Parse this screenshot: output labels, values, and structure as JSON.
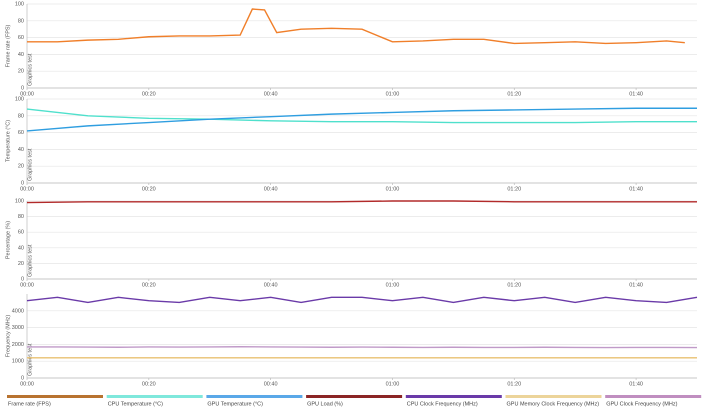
{
  "chart_data": [
    {
      "type": "line",
      "y_label": "Frame rate (FPS)",
      "annotation": "Graphics test",
      "x": [
        0,
        5,
        10,
        15,
        20,
        25,
        30,
        35,
        37,
        39,
        41,
        45,
        50,
        55,
        60,
        65,
        70,
        75,
        80,
        85,
        90,
        95,
        100,
        105,
        108
      ],
      "xlim": [
        0,
        110
      ],
      "xticks": [
        {
          "value": 0,
          "label": "00:00"
        },
        {
          "value": 20,
          "label": "00:20"
        },
        {
          "value": 40,
          "label": "00:40"
        },
        {
          "value": 60,
          "label": "01:00"
        },
        {
          "value": 80,
          "label": "01:20"
        },
        {
          "value": 100,
          "label": "01:40"
        }
      ],
      "ylim": [
        0,
        100
      ],
      "yticks": [
        0,
        20,
        40,
        60,
        80,
        100
      ],
      "grid": true,
      "series": [
        {
          "name": "Frame rate (FPS)",
          "color": "#f07f2a",
          "legend_color": "#b87330",
          "values": [
            55,
            55,
            57,
            58,
            61,
            62,
            62,
            63,
            94,
            93,
            66,
            70,
            71,
            70,
            55,
            56,
            58,
            58,
            53,
            54,
            55,
            53,
            54,
            56,
            54
          ]
        }
      ]
    },
    {
      "type": "line",
      "y_label": "Temperature (°C)",
      "annotation": "Graphics test",
      "x": [
        0,
        10,
        20,
        30,
        40,
        50,
        60,
        70,
        80,
        90,
        100,
        110
      ],
      "xlim": [
        0,
        110
      ],
      "xticks": [
        {
          "value": 0,
          "label": "00:00"
        },
        {
          "value": 20,
          "label": "00:20"
        },
        {
          "value": 40,
          "label": "00:40"
        },
        {
          "value": 60,
          "label": "01:00"
        },
        {
          "value": 80,
          "label": "01:20"
        },
        {
          "value": 100,
          "label": "01:40"
        }
      ],
      "ylim": [
        0,
        100
      ],
      "yticks": [
        0,
        20,
        40,
        60,
        80,
        100
      ],
      "grid": true,
      "series": [
        {
          "name": "CPU Temperature (°C)",
          "color": "#4fe0cc",
          "legend_color": "#7fe8dc",
          "values": [
            88,
            80,
            77,
            76,
            74,
            73,
            73,
            72,
            72,
            72,
            73,
            73
          ]
        },
        {
          "name": "GPU Temperature (°C)",
          "color": "#2f9ee0",
          "legend_color": "#5aa8e8",
          "values": [
            62,
            68,
            72,
            76,
            79,
            82,
            84,
            86,
            87,
            88,
            89,
            89
          ]
        }
      ]
    },
    {
      "type": "line",
      "y_label": "Percentage (%)",
      "annotation": "Graphics test",
      "x": [
        0,
        10,
        20,
        30,
        40,
        50,
        60,
        70,
        80,
        90,
        100,
        110
      ],
      "xlim": [
        0,
        110
      ],
      "xticks": [
        {
          "value": 0,
          "label": "00:00"
        },
        {
          "value": 20,
          "label": "00:20"
        },
        {
          "value": 40,
          "label": "00:40"
        },
        {
          "value": 60,
          "label": "01:00"
        },
        {
          "value": 80,
          "label": "01:20"
        },
        {
          "value": 100,
          "label": "01:40"
        }
      ],
      "ylim": [
        0,
        100
      ],
      "yticks": [
        0,
        20,
        40,
        60,
        80,
        100
      ],
      "grid": true,
      "series": [
        {
          "name": "GPU Load (%)",
          "color": "#b22a2a",
          "legend_color": "#8b2525",
          "values": [
            98,
            99,
            99,
            99,
            99,
            99,
            100,
            100,
            99,
            99,
            99,
            99
          ]
        }
      ]
    },
    {
      "type": "line",
      "y_label": "Frequency (MHz)",
      "annotation": "Graphics test",
      "x": [
        0,
        5,
        10,
        15,
        20,
        25,
        30,
        35,
        40,
        45,
        50,
        55,
        60,
        65,
        70,
        75,
        80,
        85,
        90,
        95,
        100,
        105,
        110
      ],
      "xlim": [
        0,
        110
      ],
      "xticks": [
        {
          "value": 0,
          "label": "00:00"
        },
        {
          "value": 20,
          "label": "00:20"
        },
        {
          "value": 40,
          "label": "00:40"
        },
        {
          "value": 60,
          "label": "01:00"
        },
        {
          "value": 80,
          "label": "01:20"
        },
        {
          "value": 100,
          "label": "01:40"
        }
      ],
      "ylim": [
        0,
        5000
      ],
      "yticks": [
        0,
        1000,
        2000,
        3000,
        4000
      ],
      "grid": true,
      "series": [
        {
          "name": "CPU Clock Frequency (MHz)",
          "color": "#6a3aa8",
          "legend_color": "#6a3aa8",
          "values": [
            4600,
            4800,
            4500,
            4800,
            4600,
            4500,
            4800,
            4600,
            4800,
            4500,
            4800,
            4800,
            4600,
            4800,
            4500,
            4800,
            4600,
            4800,
            4500,
            4800,
            4600,
            4500,
            4800
          ]
        },
        {
          "name": "GPU Memory Clock Frequency (MHz)",
          "color": "#e8c070",
          "legend_color": "#ecd49a",
          "values": [
            1200,
            1200,
            1200,
            1200,
            1200,
            1200,
            1200,
            1200,
            1200,
            1200,
            1200,
            1200,
            1200,
            1200,
            1200,
            1200,
            1200,
            1200,
            1200,
            1200,
            1200,
            1200,
            1200
          ]
        },
        {
          "name": "GPU Clock Frequency (MHz)",
          "color": "#c09ac8",
          "legend_color": "#c08ec0",
          "values": [
            1850,
            1850,
            1840,
            1830,
            1850,
            1840,
            1850,
            1860,
            1850,
            1840,
            1830,
            1840,
            1830,
            1820,
            1830,
            1820,
            1820,
            1830,
            1820,
            1810,
            1820,
            1820,
            1810
          ]
        }
      ]
    }
  ]
}
